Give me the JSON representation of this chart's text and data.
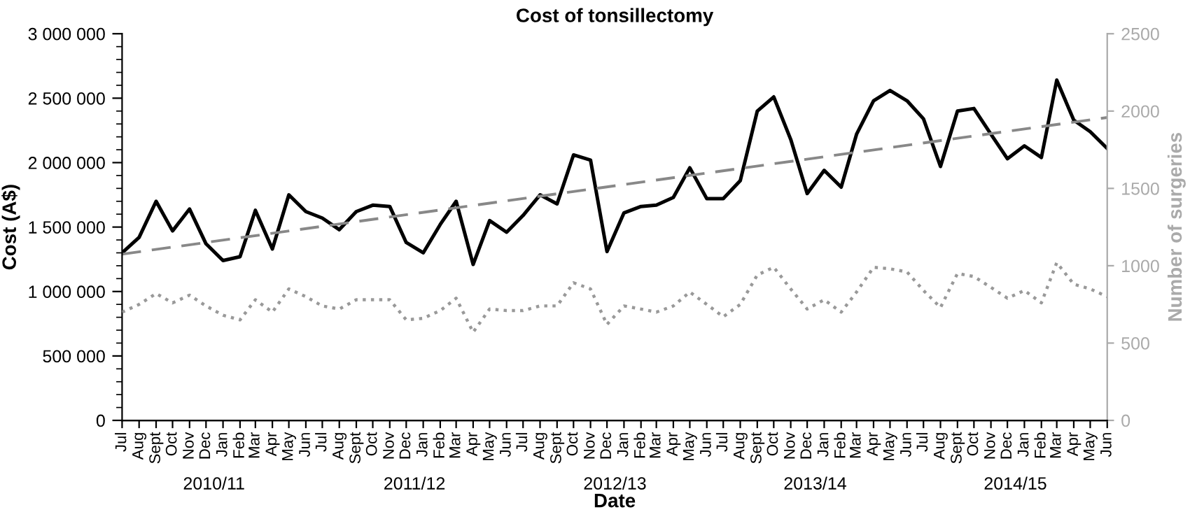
{
  "chart_data": {
    "type": "line",
    "title": "Cost of tonsillectomy",
    "xlabel": "Date",
    "ylabel": "Cost (A$)",
    "y2label": "Number of surgeries",
    "x": [
      "2010-07",
      "2010-08",
      "2010-09",
      "2010-10",
      "2010-11",
      "2010-12",
      "2011-01",
      "2011-02",
      "2011-03",
      "2011-04",
      "2011-05",
      "2011-06",
      "2011-07",
      "2011-08",
      "2011-09",
      "2011-10",
      "2011-11",
      "2011-12",
      "2012-01",
      "2012-02",
      "2012-03",
      "2012-04",
      "2012-05",
      "2012-06",
      "2012-07",
      "2012-08",
      "2012-09",
      "2012-10",
      "2012-11",
      "2012-12",
      "2013-01",
      "2013-02",
      "2013-03",
      "2013-04",
      "2013-05",
      "2013-06",
      "2013-07",
      "2013-08",
      "2013-09",
      "2013-10",
      "2013-11",
      "2013-12",
      "2014-01",
      "2014-02",
      "2014-03",
      "2014-04",
      "2014-05",
      "2014-06",
      "2014-07",
      "2014-08",
      "2014-09",
      "2014-10",
      "2014-11",
      "2014-12",
      "2015-01",
      "2015-02",
      "2015-03",
      "2015-04",
      "2015-05",
      "2015-06"
    ],
    "series": [
      {
        "color": "#000000",
        "line_style": "solid",
        "values": [
          1300000,
          1420000,
          1700000,
          1470000,
          1640000,
          1370000,
          1240000,
          1270000,
          1630000,
          1330000,
          1750000,
          1620000,
          1570000,
          1480000,
          1620000,
          1670000,
          1660000,
          1380000,
          1300000,
          1520000,
          1700000,
          1210000,
          1550000,
          1460000,
          1590000,
          1750000,
          1680000,
          2060000,
          2020000,
          1310000,
          1610000,
          1660000,
          1670000,
          1730000,
          1960000,
          1720000,
          1720000,
          1860000,
          2400000,
          2510000,
          2180000,
          1760000,
          1940000,
          1810000,
          2220000,
          2480000,
          2560000,
          2480000,
          2340000,
          1970000,
          2400000,
          2420000,
          2220000,
          2030000,
          2130000,
          2040000,
          2640000,
          2330000,
          2240000,
          2110000
        ]
      },
      {
        "color": "#999999",
        "line_style": "dotted",
        "axis": "y2",
        "values": [
          700,
          750,
          820,
          760,
          810,
          740,
          680,
          650,
          780,
          700,
          850,
          800,
          740,
          720,
          780,
          780,
          780,
          650,
          660,
          710,
          790,
          570,
          720,
          710,
          710,
          740,
          740,
          890,
          850,
          620,
          740,
          720,
          700,
          740,
          830,
          750,
          670,
          750,
          940,
          990,
          850,
          720,
          780,
          700,
          830,
          990,
          980,
          960,
          840,
          730,
          950,
          930,
          860,
          790,
          840,
          760,
          1020,
          880,
          850,
          800
        ]
      },
      {
        "color": "#888888",
        "line_style": "dashed",
        "type": "line",
        "x": [
          "2010-07",
          "2015-06"
        ],
        "values": [
          1290000,
          2350000
        ]
      }
    ],
    "xlim": [
      "2010-07",
      "2015-06"
    ],
    "xticks": [
      {
        "value": "2010-07",
        "label": "Jul"
      },
      {
        "value": "2010-08",
        "label": "Aug"
      },
      {
        "value": "2010-09",
        "label": "Sept"
      },
      {
        "value": "2010-10",
        "label": "Oct"
      },
      {
        "value": "2010-11",
        "label": "Nov"
      },
      {
        "value": "2010-12",
        "label": "Dec"
      },
      {
        "value": "2011-01",
        "label": "Jan"
      },
      {
        "value": "2011-02",
        "label": "Feb"
      },
      {
        "value": "2011-03",
        "label": "Mar"
      },
      {
        "value": "2011-04",
        "label": "Apr"
      },
      {
        "value": "2011-05",
        "label": "May"
      },
      {
        "value": "2011-06",
        "label": "Jun"
      },
      {
        "value": "2011-07",
        "label": "Jul"
      },
      {
        "value": "2011-08",
        "label": "Aug"
      },
      {
        "value": "2011-09",
        "label": "Sept"
      },
      {
        "value": "2011-10",
        "label": "Oct"
      },
      {
        "value": "2011-11",
        "label": "Nov"
      },
      {
        "value": "2011-12",
        "label": "Dec"
      },
      {
        "value": "2012-01",
        "label": "Jan"
      },
      {
        "value": "2012-02",
        "label": "Feb"
      },
      {
        "value": "2012-03",
        "label": "Mar"
      },
      {
        "value": "2012-04",
        "label": "Apr"
      },
      {
        "value": "2012-05",
        "label": "May"
      },
      {
        "value": "2012-06",
        "label": "Jun"
      },
      {
        "value": "2012-07",
        "label": "Jul"
      },
      {
        "value": "2012-08",
        "label": "Aug"
      },
      {
        "value": "2012-09",
        "label": "Sept"
      },
      {
        "value": "2012-10",
        "label": "Oct"
      },
      {
        "value": "2012-11",
        "label": "Nov"
      },
      {
        "value": "2012-12",
        "label": "Dec"
      },
      {
        "value": "2013-01",
        "label": "Jan"
      },
      {
        "value": "2013-02",
        "label": "Feb"
      },
      {
        "value": "2013-03",
        "label": "Mar"
      },
      {
        "value": "2013-04",
        "label": "Apr"
      },
      {
        "value": "2013-05",
        "label": "May"
      },
      {
        "value": "2013-06",
        "label": "Jun"
      },
      {
        "value": "2013-07",
        "label": "Jul"
      },
      {
        "value": "2013-08",
        "label": "Aug"
      },
      {
        "value": "2013-09",
        "label": "Sept"
      },
      {
        "value": "2013-10",
        "label": "Oct"
      },
      {
        "value": "2013-11",
        "label": "Nov"
      },
      {
        "value": "2013-12",
        "label": "Dec"
      },
      {
        "value": "2014-01",
        "label": "Jan"
      },
      {
        "value": "2014-02",
        "label": "Feb"
      },
      {
        "value": "2014-03",
        "label": "Mar"
      },
      {
        "value": "2014-04",
        "label": "Apr"
      },
      {
        "value": "2014-05",
        "label": "May"
      },
      {
        "value": "2014-06",
        "label": "Jun"
      },
      {
        "value": "2014-07",
        "label": "Jul"
      },
      {
        "value": "2014-08",
        "label": "Aug"
      },
      {
        "value": "2014-09",
        "label": "Sept"
      },
      {
        "value": "2014-10",
        "label": "Oct"
      },
      {
        "value": "2014-11",
        "label": "Nov"
      },
      {
        "value": "2014-12",
        "label": "Dec"
      },
      {
        "value": "2015-01",
        "label": "Jan"
      },
      {
        "value": "2015-02",
        "label": "Feb"
      },
      {
        "value": "2015-03",
        "label": "Mar"
      },
      {
        "value": "2015-04",
        "label": "Apr"
      },
      {
        "value": "2015-05",
        "label": "May"
      },
      {
        "value": "2015-06",
        "label": "Jun"
      }
    ],
    "ylim": [
      0,
      3000000
    ],
    "yticks": [
      {
        "value": 0,
        "label": "0"
      },
      {
        "value": 100000,
        "label": null
      },
      {
        "value": 200000,
        "label": null
      },
      {
        "value": 300000,
        "label": null
      },
      {
        "value": 400000,
        "label": null
      },
      {
        "value": 500000,
        "label": "500 000"
      },
      {
        "value": 600000,
        "label": null
      },
      {
        "value": 700000,
        "label": null
      },
      {
        "value": 800000,
        "label": null
      },
      {
        "value": 900000,
        "label": null
      },
      {
        "value": 1000000,
        "label": "1 000 000"
      },
      {
        "value": 1100000,
        "label": null
      },
      {
        "value": 1200000,
        "label": null
      },
      {
        "value": 1300000,
        "label": null
      },
      {
        "value": 1400000,
        "label": null
      },
      {
        "value": 1500000,
        "label": "1 500 000"
      },
      {
        "value": 1600000,
        "label": null
      },
      {
        "value": 1700000,
        "label": null
      },
      {
        "value": 1800000,
        "label": null
      },
      {
        "value": 1900000,
        "label": null
      },
      {
        "value": 2000000,
        "label": "2 000 000"
      },
      {
        "value": 2100000,
        "label": null
      },
      {
        "value": 2200000,
        "label": null
      },
      {
        "value": 2300000,
        "label": null
      },
      {
        "value": 2400000,
        "label": null
      },
      {
        "value": 2500000,
        "label": "2 500 000"
      },
      {
        "value": 2600000,
        "label": null
      },
      {
        "value": 2700000,
        "label": null
      },
      {
        "value": 2800000,
        "label": null
      },
      {
        "value": 2900000,
        "label": null
      },
      {
        "value": 3000000,
        "label": "3 000 000"
      }
    ],
    "y2lim": [
      0,
      2500
    ],
    "y2ticks": [
      0,
      500,
      1000,
      1500,
      2000,
      2500
    ],
    "annotations": [
      "2010/11",
      "2011/12",
      "2012/13",
      "2013/14",
      "2014/15"
    ],
    "grid": false,
    "marker": "none"
  }
}
